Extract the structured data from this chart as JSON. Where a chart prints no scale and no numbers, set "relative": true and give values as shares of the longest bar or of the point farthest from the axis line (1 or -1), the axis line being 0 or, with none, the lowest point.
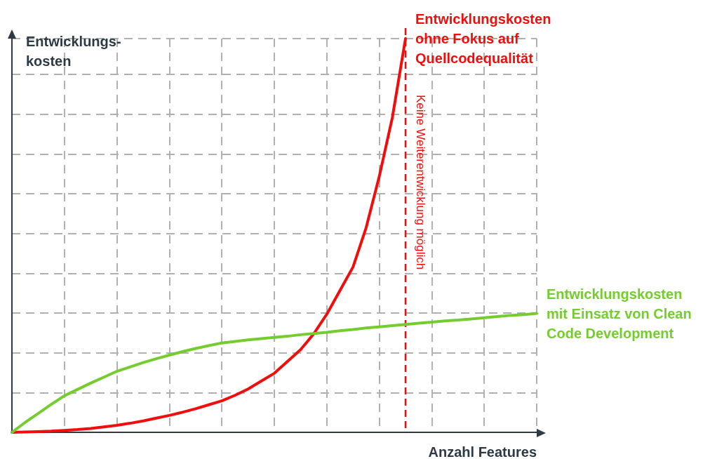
{
  "chart_data": {
    "type": "line",
    "relative": true,
    "xlabel": "Anzahl Features",
    "ylabel": "Entwicklungs-\nkosten",
    "grid": true,
    "marker": "none",
    "line_style": "solid",
    "legend": false,
    "categories": [
      null,
      null,
      null,
      null,
      null,
      null,
      null,
      null,
      null,
      null,
      null,
      null,
      null,
      null,
      null,
      null,
      null,
      null,
      null,
      null,
      null,
      null,
      null,
      null,
      null,
      null,
      null,
      null,
      null,
      null,
      null,
      null,
      null,
      null,
      null,
      null,
      null,
      null,
      null,
      null,
      null
    ],
    "series": [
      {
        "name": "Entwicklungskosten\nohne Fokus auf\nQuellcodequalität",
        "color": "#f20d0d",
        "values": [
          0,
          0.001,
          0.002,
          0.003,
          0.005,
          0.007,
          0.01,
          0.014,
          0.018,
          0.023,
          0.029,
          0.036,
          0.043,
          0.051,
          0.06,
          0.07,
          0.08,
          0.094,
          0.11,
          0.13,
          0.15,
          0.18,
          0.21,
          0.25,
          0.3,
          0.36,
          0.42,
          0.52,
          0.65,
          0.8,
          1.0,
          null,
          null,
          null,
          null,
          null,
          null,
          null,
          null,
          null,
          null
        ]
      },
      {
        "name": "Entwicklungskosten\nmit Einsatz von Clean\nCode Development",
        "color": "#74cc2e",
        "values": [
          0,
          0.025,
          0.048,
          0.071,
          0.093,
          0.109,
          0.125,
          0.14,
          0.155,
          0.166,
          0.177,
          0.187,
          0.196,
          0.205,
          0.213,
          0.22,
          0.227,
          0.231,
          0.235,
          0.238,
          0.241,
          0.244,
          0.248,
          0.251,
          0.254,
          0.258,
          0.261,
          0.265,
          0.268,
          0.271,
          0.274,
          0.277,
          0.28,
          0.283,
          0.285,
          0.288,
          0.291,
          0.294,
          0.297,
          0.299,
          0.302
        ]
      }
    ],
    "ref_lines": [
      {
        "axis": "x",
        "label": "Keine Weiterentwicklung möglich",
        "color": "#f20d0d",
        "line_style": "dashed"
      }
    ]
  }
}
